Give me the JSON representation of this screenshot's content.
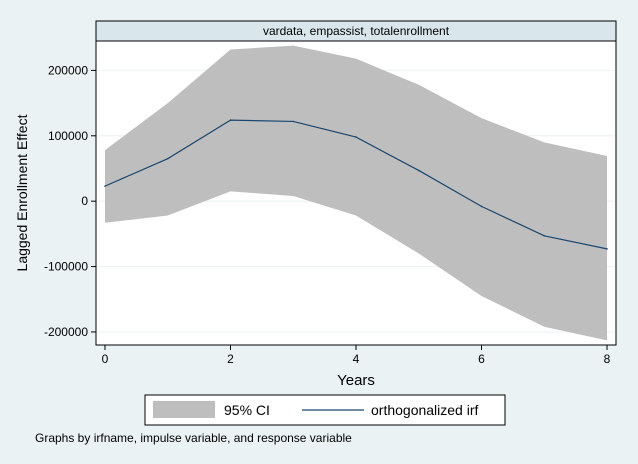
{
  "chart_data": {
    "type": "area",
    "panel_title": "vardata, empassist, totalenrollment",
    "xlabel": "Years",
    "ylabel": "Lagged Enrollment Effect",
    "x": [
      0,
      1,
      2,
      3,
      4,
      5,
      6,
      7,
      8
    ],
    "xlim": [
      0,
      8
    ],
    "ylim": [
      -220000,
      245000
    ],
    "xticks": [
      0,
      2,
      4,
      6,
      8
    ],
    "xtick_labels": [
      "0",
      "2",
      "4",
      "6",
      "8"
    ],
    "yticks": [
      -200000,
      -100000,
      0,
      100000,
      200000
    ],
    "ytick_labels": [
      "-200000",
      "-100000",
      "0",
      "100000",
      "200000"
    ],
    "grid": true,
    "legend_position": "bottom",
    "series": [
      {
        "name": "95% CI",
        "kind": "band",
        "color": "#bebebe",
        "lower": [
          -33000,
          -22000,
          15000,
          8000,
          -22000,
          -80000,
          -145000,
          -192000,
          -213000
        ],
        "upper": [
          78000,
          150000,
          232000,
          238000,
          218000,
          178000,
          127000,
          90000,
          69000
        ]
      },
      {
        "name": "orthogonalized irf",
        "kind": "line",
        "color": "#1a476f",
        "values": [
          23000,
          65000,
          124000,
          122000,
          98000,
          47000,
          -8000,
          -53000,
          -73000
        ]
      }
    ],
    "note": "Graphs by irfname, impulse variable, and response variable"
  },
  "colors": {
    "outer_background": "#eaf2f3",
    "plot_background": "#ffffff",
    "panel_header": "#d9e6eb",
    "grid": "#eaf2f3"
  }
}
